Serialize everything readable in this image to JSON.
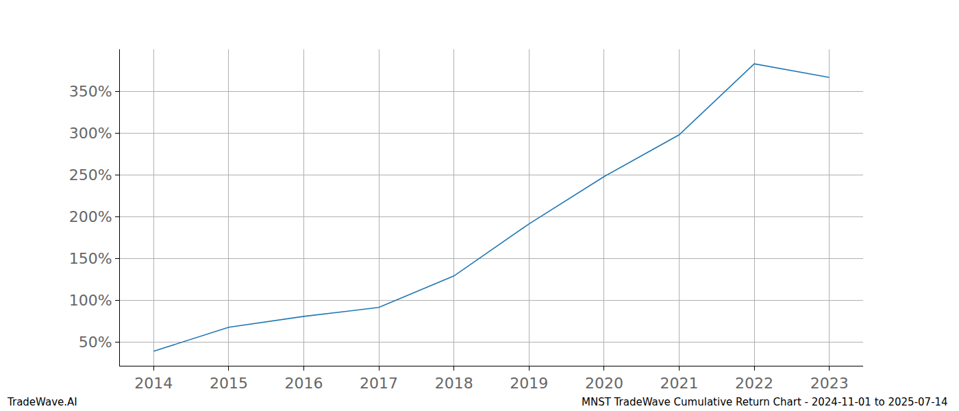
{
  "chart_data": {
    "type": "line",
    "x": [
      2014,
      2015,
      2016,
      2017,
      2018,
      2019,
      2020,
      2021,
      2022,
      2023
    ],
    "values": [
      39.4,
      68,
      81,
      91.7,
      129.3,
      191.5,
      248,
      297.9,
      382.7,
      366.4
    ],
    "color": "#1f77b4",
    "xlim": [
      2013.55,
      2023.45
    ],
    "xticks": [
      2014,
      2015,
      2016,
      2017,
      2018,
      2019,
      2020,
      2021,
      2022,
      2023
    ],
    "ylim": [
      22,
      400
    ],
    "yticks": [
      {
        "value": 50,
        "label": "50%"
      },
      {
        "value": 100,
        "label": "100%"
      },
      {
        "value": 150,
        "label": "150%"
      },
      {
        "value": 200,
        "label": "200%"
      },
      {
        "value": 250,
        "label": "250%"
      },
      {
        "value": 300,
        "label": "300%"
      },
      {
        "value": 350,
        "label": "350%"
      }
    ],
    "grid": true,
    "annotations": [
      "TradeWave.AI",
      "MNST TradeWave Cumulative Return Chart - 2024-11-01 to 2025-07-14"
    ]
  }
}
